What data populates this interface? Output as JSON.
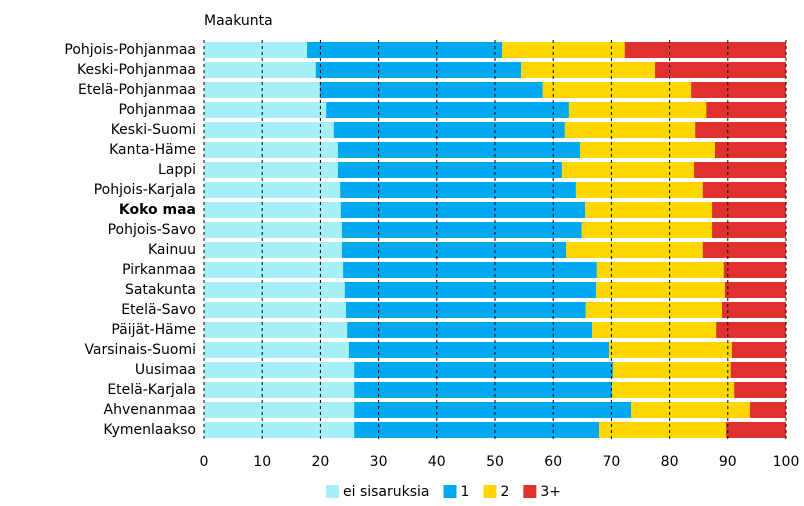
{
  "chart_data": {
    "type": "stacked_barh",
    "title": "Maakunta",
    "categories": [
      "Pohjois-Pohjanmaa",
      "Keski-Pohjanmaa",
      "Etelä-Pohjanmaa",
      "Pohjanmaa",
      "Keski-Suomi",
      "Kanta-Häme",
      "Lappi",
      "Pohjois-Karjala",
      "Koko maa",
      "Pohjois-Savo",
      "Kainuu",
      "Pirkanmaa",
      "Satakunta",
      "Etelä-Savo",
      "Päijät-Häme",
      "Varsinais-Suomi",
      "Uusimaa",
      "Etelä-Karjala",
      "Ahvenanmaa",
      "Kymenlaakso"
    ],
    "highlight_category": "Koko maa",
    "series": [
      {
        "name": "ei sisaruksia",
        "color": "#a8f0f8",
        "values": [
          17.7,
          19.2,
          19.9,
          21.0,
          22.3,
          23.0,
          23.0,
          23.4,
          23.5,
          23.7,
          23.7,
          23.9,
          24.2,
          24.4,
          24.6,
          24.9,
          25.8,
          25.8,
          25.8,
          25.8
        ]
      },
      {
        "name": "1",
        "color": "#00a8f0",
        "values": [
          33.5,
          35.3,
          38.3,
          41.7,
          39.7,
          41.6,
          38.5,
          40.5,
          42.0,
          41.2,
          38.5,
          43.6,
          43.2,
          41.2,
          42.1,
          44.7,
          44.5,
          44.3,
          47.6,
          42.1
        ]
      },
      {
        "name": "2",
        "color": "#ffd700",
        "values": [
          21.1,
          23.0,
          25.5,
          23.6,
          22.4,
          23.2,
          22.7,
          21.8,
          21.8,
          22.4,
          23.5,
          21.8,
          22.1,
          23.4,
          21.3,
          21.1,
          20.2,
          21.0,
          20.4,
          21.8
        ]
      },
      {
        "name": "3+",
        "color": "#e03030",
        "values": [
          27.7,
          22.5,
          16.3,
          13.7,
          15.6,
          12.2,
          15.8,
          14.3,
          12.7,
          12.7,
          14.3,
          10.7,
          10.5,
          11.0,
          12.0,
          9.3,
          9.5,
          8.9,
          6.2,
          10.3
        ]
      }
    ],
    "xlim": [
      0,
      100
    ],
    "xticks": [
      0,
      10,
      20,
      30,
      40,
      50,
      60,
      70,
      80,
      90,
      100
    ],
    "grid": true
  }
}
